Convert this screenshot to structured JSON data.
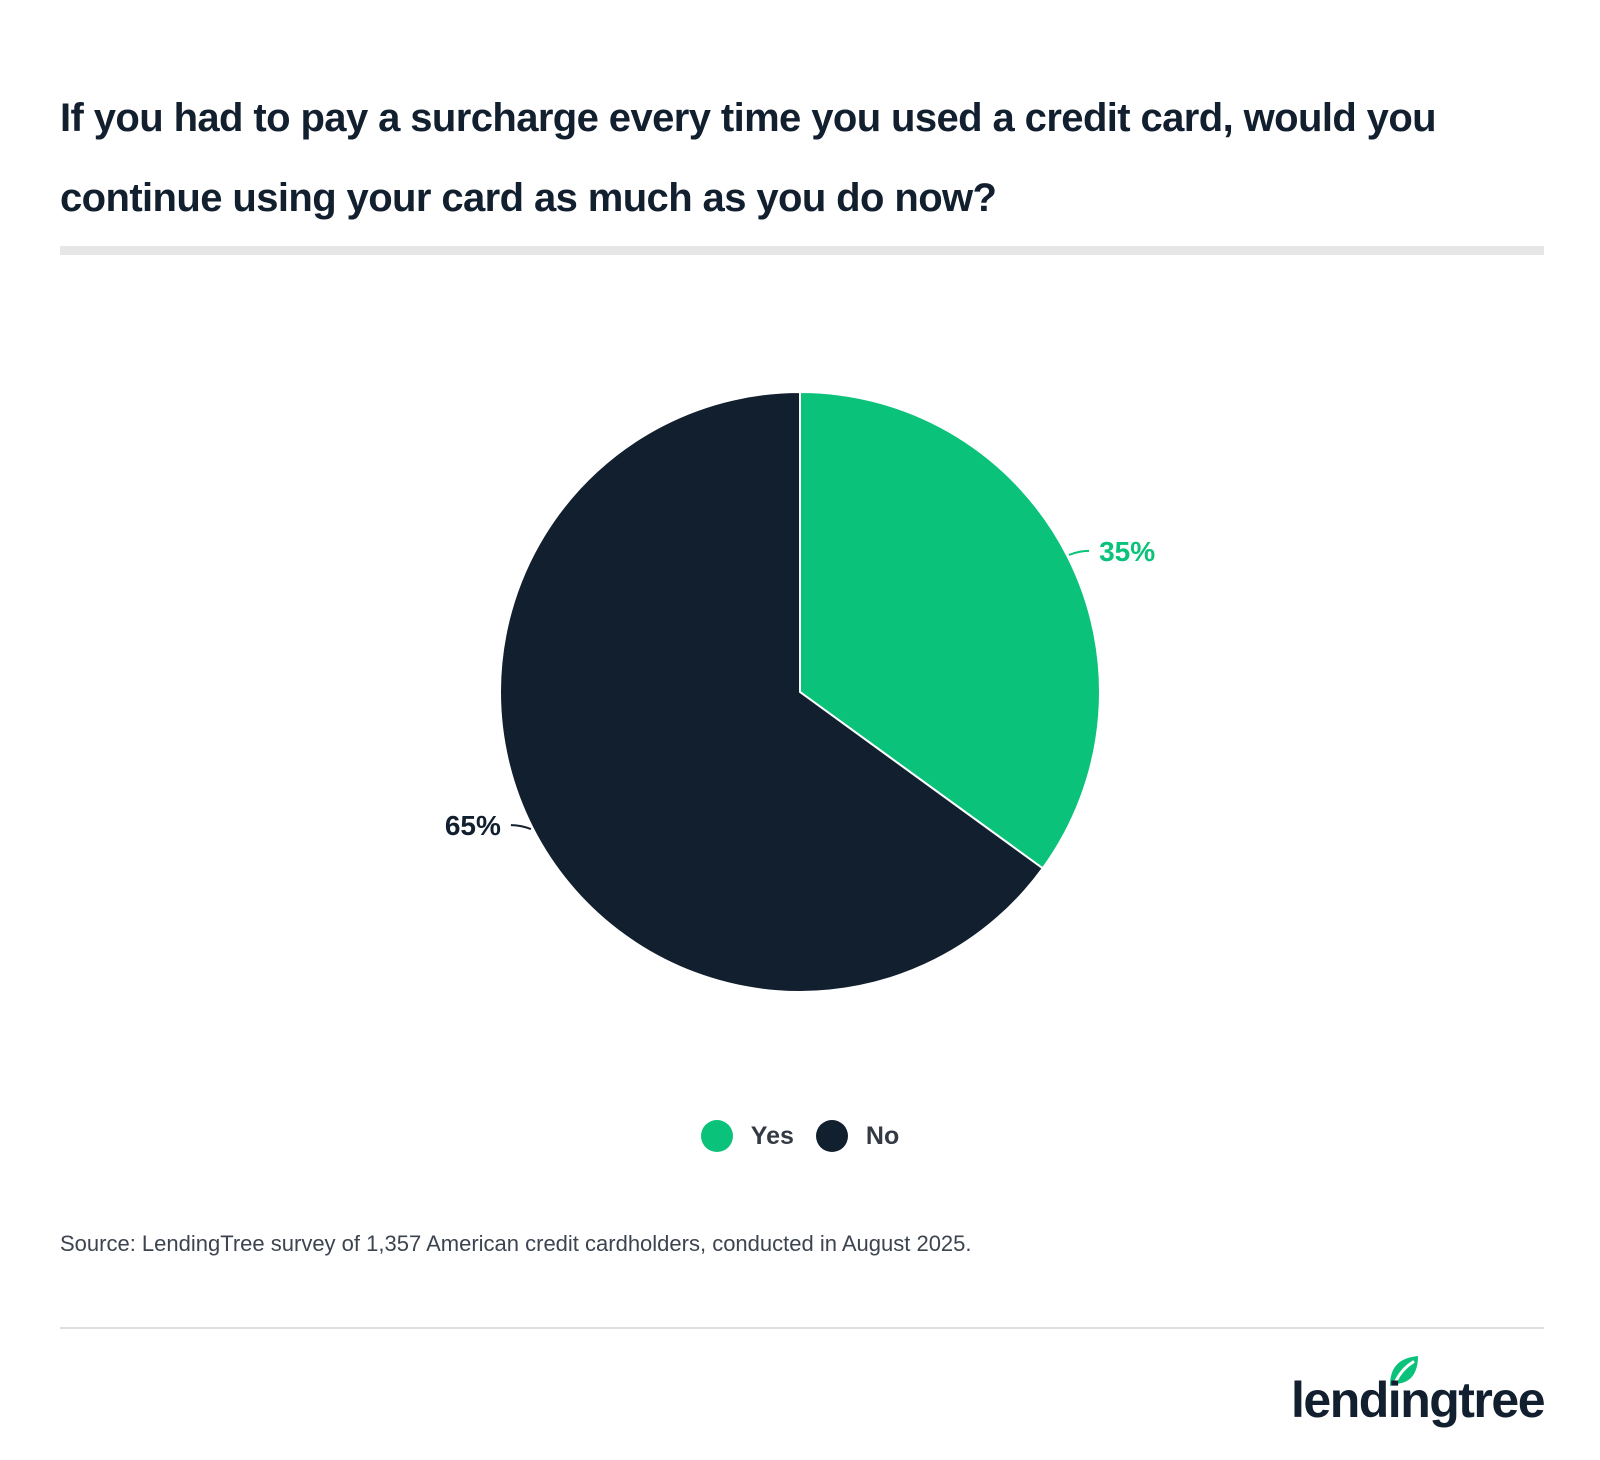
{
  "header": {
    "title": "If you had to pay a surcharge every time you used a credit card, would you continue using your card as much as you do now?"
  },
  "chart_data": {
    "type": "pie",
    "categories": [
      "Yes",
      "No"
    ],
    "values": [
      35,
      65
    ],
    "labels": [
      "35%",
      "65%"
    ],
    "colors": [
      "#0bc27a",
      "#121f2f"
    ],
    "label_colors": [
      "#0bc27a",
      "#121f2f"
    ],
    "title": "If you had to pay a surcharge every time you used a credit card, would you continue using your card as much as you do now?",
    "legend": "bottom-center"
  },
  "legend": {
    "items": [
      {
        "label": "Yes",
        "color": "#0bc27a"
      },
      {
        "label": "No",
        "color": "#121f2f"
      }
    ]
  },
  "footer": {
    "source": "Source: LendingTree survey of 1,357 American credit cardholders, conducted in August 2025.",
    "logo_text": "lendingtree",
    "logo_icon": "leaf-icon"
  }
}
